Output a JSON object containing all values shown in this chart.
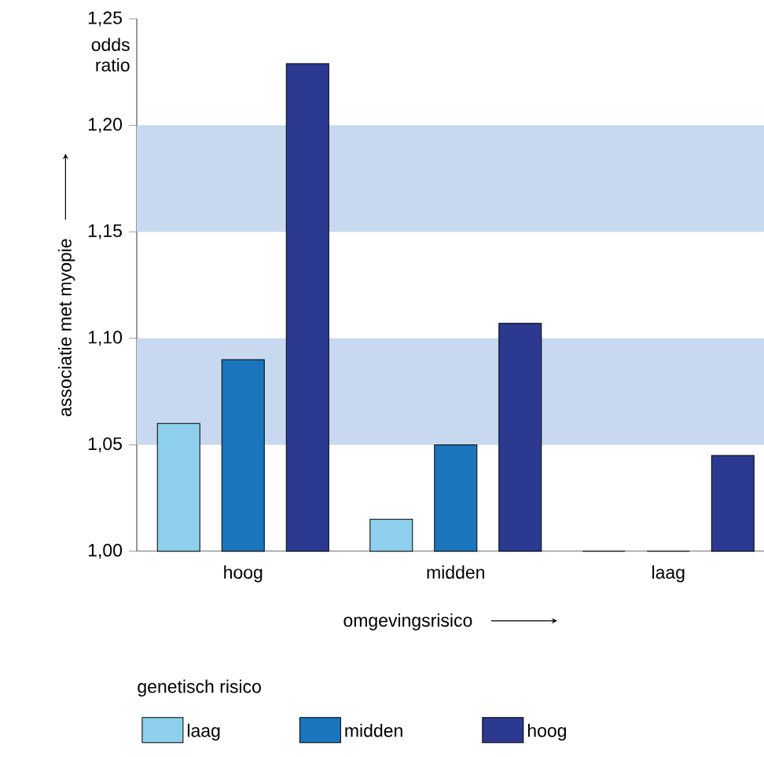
{
  "chart_data": {
    "type": "bar",
    "categories": [
      "hoog",
      "midden",
      "laag"
    ],
    "series": [
      {
        "name": "laag",
        "color": "#8dcfec",
        "values": [
          1.06,
          1.015,
          1.0
        ]
      },
      {
        "name": "midden",
        "color": "#1a75bc",
        "values": [
          1.09,
          1.05,
          1.0
        ]
      },
      {
        "name": "hoog",
        "color": "#2b3990",
        "values": [
          1.229,
          1.107,
          1.045
        ]
      }
    ],
    "ylim": [
      1.0,
      1.25
    ],
    "yticks": [
      {
        "value": 1.0,
        "label": "1,00"
      },
      {
        "value": 1.05,
        "label": "1,05"
      },
      {
        "value": 1.1,
        "label": "1,10"
      },
      {
        "value": 1.15,
        "label": "1,15"
      },
      {
        "value": 1.2,
        "label": "1,20"
      },
      {
        "value": 1.25,
        "label": "1,25"
      }
    ],
    "bands": [
      {
        "axis": "y",
        "from": 1.05,
        "to": 1.1,
        "color": "#c7d8ef"
      },
      {
        "axis": "y",
        "from": 1.15,
        "to": 1.2,
        "color": "#c7d8ef"
      }
    ],
    "xlabel": "omgevingsrisico",
    "ylabel": "associatie met myopie",
    "legend_title": "genetisch risico",
    "annotations": [
      "odds ratio"
    ],
    "legend": "bottom",
    "grid": false
  }
}
